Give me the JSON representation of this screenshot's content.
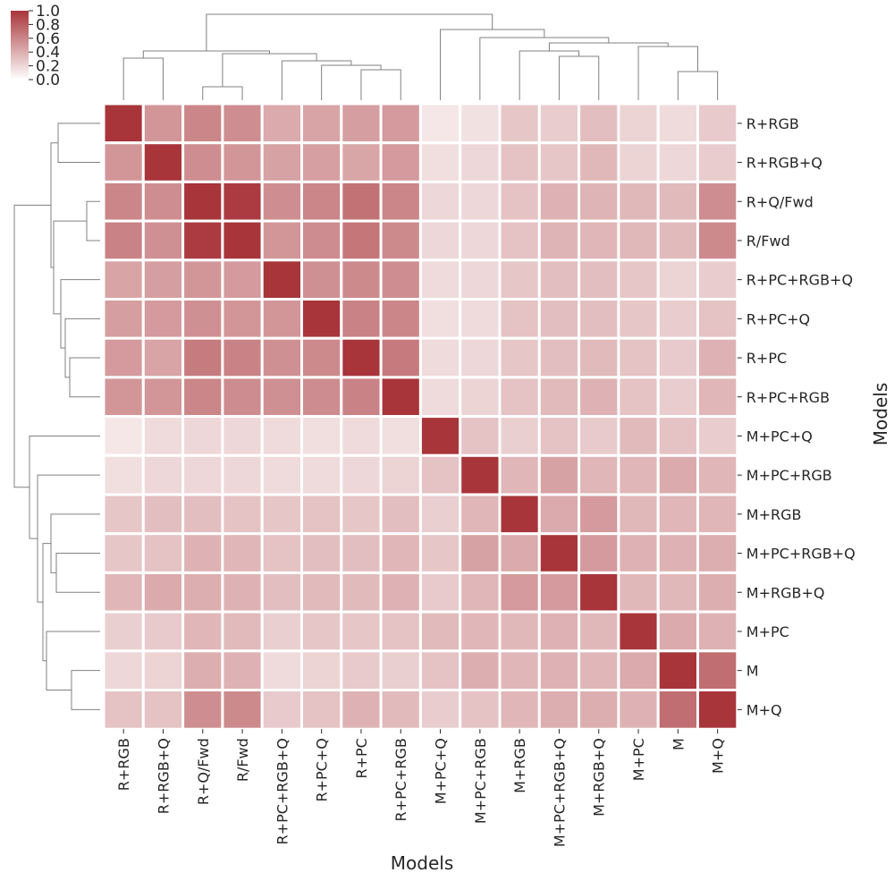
{
  "chart_data": {
    "type": "heatmap",
    "title": "",
    "xlabel": "Models",
    "ylabel": "Models",
    "categories": [
      "R+RGB",
      "R+RGB+Q",
      "R+Q/Fwd",
      "R/Fwd",
      "R+PC+RGB+Q",
      "R+PC+Q",
      "R+PC",
      "R+PC+RGB",
      "M+PC+Q",
      "M+PC+RGB",
      "M+RGB",
      "M+PC+RGB+Q",
      "M+RGB+Q",
      "M+PC",
      "M",
      "M+Q"
    ],
    "values": [
      [
        1.0,
        0.52,
        0.6,
        0.56,
        0.42,
        0.45,
        0.48,
        0.5,
        0.12,
        0.15,
        0.28,
        0.25,
        0.32,
        0.22,
        0.18,
        0.26
      ],
      [
        0.52,
        1.0,
        0.56,
        0.52,
        0.46,
        0.47,
        0.44,
        0.5,
        0.16,
        0.2,
        0.3,
        0.28,
        0.35,
        0.22,
        0.2,
        0.25
      ],
      [
        0.6,
        0.56,
        1.0,
        0.97,
        0.56,
        0.6,
        0.7,
        0.6,
        0.2,
        0.2,
        0.3,
        0.38,
        0.37,
        0.35,
        0.34,
        0.56
      ],
      [
        0.62,
        0.55,
        0.97,
        1.0,
        0.52,
        0.57,
        0.68,
        0.58,
        0.2,
        0.2,
        0.3,
        0.37,
        0.36,
        0.35,
        0.34,
        0.58
      ],
      [
        0.45,
        0.48,
        0.52,
        0.5,
        1.0,
        0.55,
        0.58,
        0.56,
        0.18,
        0.2,
        0.28,
        0.32,
        0.32,
        0.28,
        0.22,
        0.25
      ],
      [
        0.48,
        0.5,
        0.55,
        0.52,
        0.52,
        1.0,
        0.62,
        0.6,
        0.16,
        0.18,
        0.3,
        0.32,
        0.32,
        0.28,
        0.25,
        0.3
      ],
      [
        0.5,
        0.45,
        0.65,
        0.62,
        0.55,
        0.58,
        1.0,
        0.66,
        0.18,
        0.2,
        0.28,
        0.32,
        0.34,
        0.3,
        0.26,
        0.38
      ],
      [
        0.52,
        0.52,
        0.6,
        0.57,
        0.55,
        0.57,
        0.62,
        1.0,
        0.18,
        0.22,
        0.3,
        0.34,
        0.38,
        0.3,
        0.25,
        0.36
      ],
      [
        0.12,
        0.18,
        0.2,
        0.2,
        0.18,
        0.16,
        0.18,
        0.16,
        1.0,
        0.3,
        0.24,
        0.3,
        0.26,
        0.34,
        0.3,
        0.25
      ],
      [
        0.16,
        0.2,
        0.2,
        0.2,
        0.18,
        0.18,
        0.2,
        0.22,
        0.3,
        1.0,
        0.36,
        0.46,
        0.36,
        0.36,
        0.42,
        0.36
      ],
      [
        0.28,
        0.32,
        0.32,
        0.3,
        0.28,
        0.3,
        0.28,
        0.32,
        0.24,
        0.36,
        1.0,
        0.42,
        0.5,
        0.35,
        0.36,
        0.36
      ],
      [
        0.28,
        0.3,
        0.38,
        0.36,
        0.3,
        0.32,
        0.32,
        0.36,
        0.28,
        0.46,
        0.42,
        1.0,
        0.5,
        0.38,
        0.38,
        0.4
      ],
      [
        0.36,
        0.42,
        0.4,
        0.38,
        0.32,
        0.34,
        0.34,
        0.38,
        0.26,
        0.36,
        0.5,
        0.5,
        1.0,
        0.35,
        0.35,
        0.4
      ],
      [
        0.24,
        0.26,
        0.36,
        0.34,
        0.24,
        0.28,
        0.28,
        0.3,
        0.34,
        0.36,
        0.35,
        0.38,
        0.35,
        1.0,
        0.42,
        0.38
      ],
      [
        0.2,
        0.22,
        0.4,
        0.38,
        0.18,
        0.22,
        0.26,
        0.24,
        0.3,
        0.4,
        0.36,
        0.38,
        0.36,
        0.42,
        1.0,
        0.72
      ],
      [
        0.3,
        0.3,
        0.56,
        0.58,
        0.26,
        0.3,
        0.38,
        0.34,
        0.25,
        0.3,
        0.36,
        0.4,
        0.4,
        0.38,
        0.72,
        1.0
      ]
    ],
    "vmin": 0.0,
    "vmax": 1.0,
    "colormap": {
      "low": "#ffffff",
      "high": "#a8353a"
    },
    "colorbar_ticks": [
      "0.0",
      "0.2",
      "0.4",
      "0.6",
      "0.8",
      "1.0"
    ],
    "dendrogram_color": "#808080",
    "grid_color": "#ffffff"
  }
}
